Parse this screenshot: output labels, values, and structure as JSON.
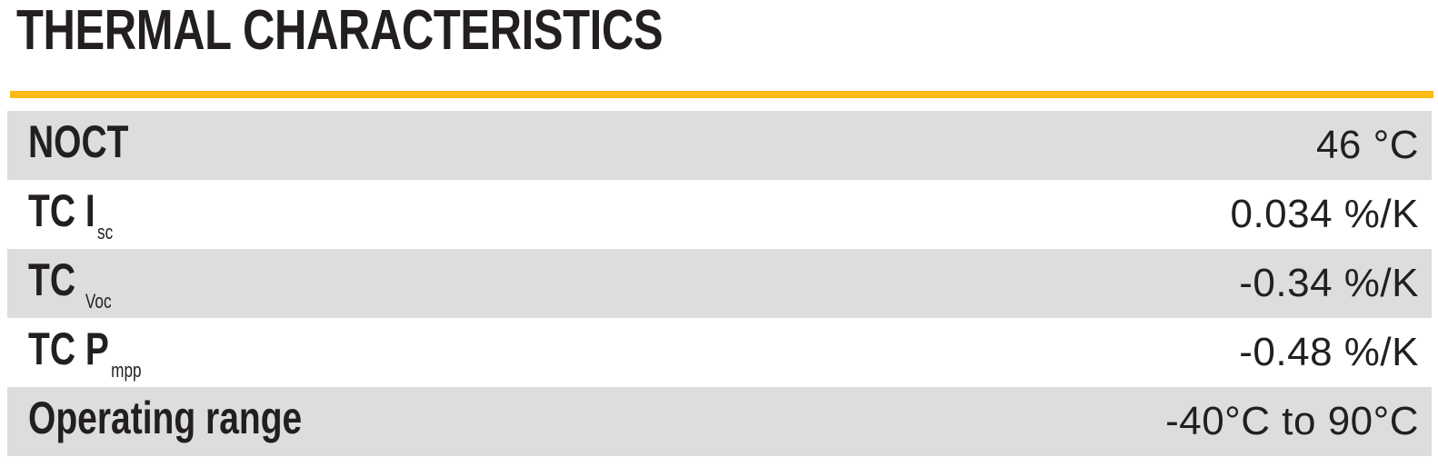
{
  "title": "THERMAL CHARACTERISTICS",
  "colors": {
    "accent": "#FBBA17",
    "shade": "#DCDDDE",
    "text": "#231F20"
  },
  "table": {
    "rows": [
      {
        "label": "NOCT",
        "subscript": "",
        "value": "46 °C"
      },
      {
        "label": "TC I",
        "subscript": "sc",
        "value": "0.034 %/K"
      },
      {
        "label": "TC",
        "subscript": "Voc",
        "value": "-0.34 %/K"
      },
      {
        "label": "TC P",
        "subscript": "mpp",
        "value": "-0.48 %/K"
      },
      {
        "label": "Operating range",
        "subscript": "",
        "value": "-40°C to 90°C"
      }
    ]
  }
}
